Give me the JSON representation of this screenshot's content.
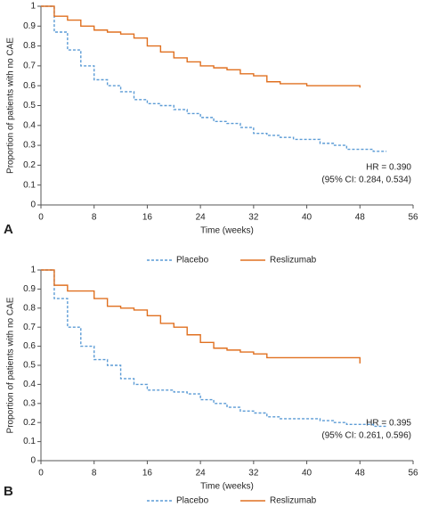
{
  "chart_data": [
    {
      "type": "line",
      "step": true,
      "panel_label": "A",
      "ylabel": "Proportion of patients with no CAE",
      "xlabel": "Time (weeks)",
      "annotations": [
        "HR = 0.390",
        "(95% CI: 0.284, 0.534)"
      ],
      "x": [
        0,
        2,
        4,
        6,
        8,
        10,
        12,
        14,
        16,
        18,
        20,
        22,
        24,
        26,
        28,
        30,
        32,
        34,
        36,
        38,
        40,
        42,
        44,
        46,
        48,
        50,
        52
      ],
      "series": [
        {
          "name": "Placebo",
          "color": "#5b9bd5",
          "dashed": true,
          "values": [
            1,
            0.87,
            0.78,
            0.7,
            0.63,
            0.6,
            0.57,
            0.53,
            0.51,
            0.5,
            0.48,
            0.46,
            0.44,
            0.42,
            0.41,
            0.39,
            0.36,
            0.35,
            0.34,
            0.33,
            0.33,
            0.31,
            0.3,
            0.28,
            0.28,
            0.27,
            0.27
          ]
        },
        {
          "name": "Reslizumab",
          "color": "#e07020",
          "dashed": false,
          "values": [
            1,
            0.95,
            0.93,
            0.9,
            0.88,
            0.87,
            0.86,
            0.84,
            0.8,
            0.77,
            0.74,
            0.72,
            0.7,
            0.69,
            0.68,
            0.66,
            0.65,
            0.62,
            0.61,
            0.61,
            0.6,
            0.6,
            0.6,
            0.6,
            0.59,
            null,
            null
          ]
        }
      ],
      "xlim": [
        0,
        56
      ],
      "xticks": [
        0,
        8,
        16,
        24,
        32,
        40,
        48,
        56
      ],
      "ylim": [
        0,
        1
      ],
      "yticks": [
        0,
        0.1,
        0.2,
        0.3,
        0.4,
        0.5,
        0.6,
        0.7,
        0.8,
        0.9,
        1
      ],
      "legend": "bottom"
    },
    {
      "type": "line",
      "step": true,
      "panel_label": "B",
      "ylabel": "Proportion of patients with no CAE",
      "xlabel": "Time (weeks)",
      "annotations": [
        "HR = 0.395",
        "(95% CI: 0.261, 0.596)"
      ],
      "x": [
        0,
        2,
        4,
        6,
        8,
        10,
        12,
        14,
        16,
        18,
        20,
        22,
        24,
        26,
        28,
        30,
        32,
        34,
        36,
        38,
        40,
        42,
        44,
        46,
        48,
        50,
        52
      ],
      "series": [
        {
          "name": "Placebo",
          "color": "#5b9bd5",
          "dashed": true,
          "values": [
            1,
            0.85,
            0.7,
            0.6,
            0.53,
            0.5,
            0.43,
            0.4,
            0.37,
            0.37,
            0.36,
            0.35,
            0.32,
            0.3,
            0.28,
            0.26,
            0.25,
            0.23,
            0.22,
            0.22,
            0.22,
            0.21,
            0.2,
            0.19,
            0.19,
            0.18,
            0.18
          ]
        },
        {
          "name": "Reslizumab",
          "color": "#e07020",
          "dashed": false,
          "values": [
            1,
            0.92,
            0.89,
            0.89,
            0.85,
            0.81,
            0.8,
            0.79,
            0.76,
            0.72,
            0.7,
            0.66,
            0.62,
            0.59,
            0.58,
            0.57,
            0.56,
            0.54,
            0.54,
            0.54,
            0.54,
            0.54,
            0.54,
            0.54,
            0.51,
            null,
            null
          ]
        }
      ],
      "xlim": [
        0,
        56
      ],
      "xticks": [
        0,
        8,
        16,
        24,
        32,
        40,
        48,
        56
      ],
      "ylim": [
        0,
        1
      ],
      "yticks": [
        0,
        0.1,
        0.2,
        0.3,
        0.4,
        0.5,
        0.6,
        0.7,
        0.8,
        0.9,
        1
      ],
      "legend": "bottom"
    }
  ]
}
